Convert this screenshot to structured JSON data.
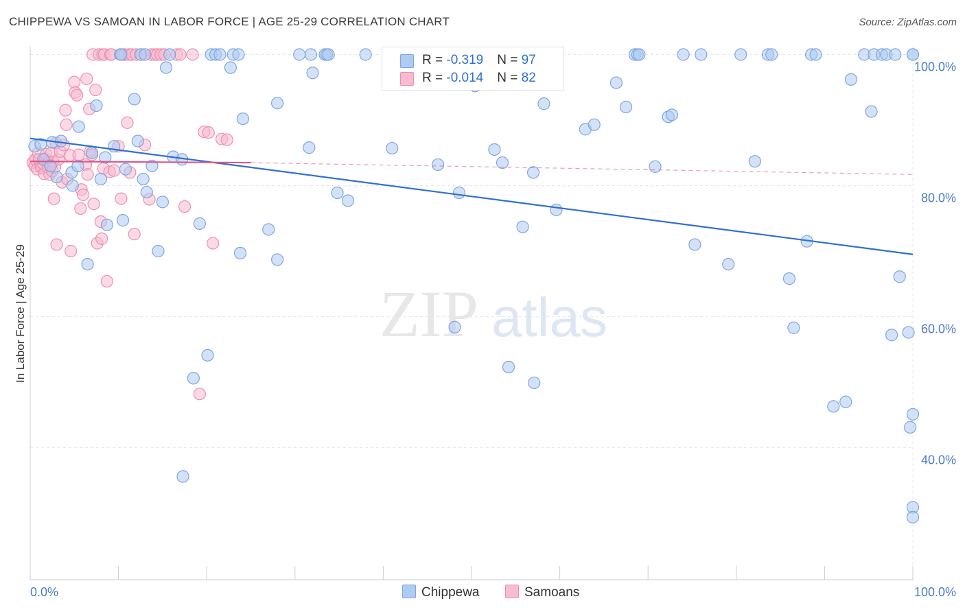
{
  "header": {
    "title": "CHIPPEWA VS SAMOAN IN LABOR FORCE | AGE 25-29 CORRELATION CHART",
    "source": "Source: ZipAtlas.com"
  },
  "watermark": {
    "zip": "ZIP",
    "atlas": "atlas"
  },
  "legend": {
    "rows": [
      {
        "r_label": "R = ",
        "r_value": "-0.319",
        "n_label": "N = ",
        "n_value": "97",
        "color": "#aecbf2",
        "border": "#7da6e0"
      },
      {
        "r_label": "R = ",
        "r_value": "-0.014",
        "n_label": "N = ",
        "n_value": "82",
        "color": "#f7bcd0",
        "border": "#ee8fb0"
      }
    ]
  },
  "chart_data": {
    "type": "scatter",
    "ylabel": "In Labor Force | Age 25-29",
    "xlim": [
      0,
      100
    ],
    "ylim": [
      22,
      102
    ],
    "x_tick_labels": [
      "0.0%",
      "100.0%"
    ],
    "y_ticks": [
      100,
      80,
      60,
      40
    ],
    "y_tick_labels": [
      "100.0%",
      "80.0%",
      "60.0%",
      "40.0%"
    ],
    "grid": true,
    "legend_position": "top-center",
    "series": [
      {
        "name": "Chippewa",
        "color": "#aecbf2",
        "stroke": "#7da6e0",
        "trend": {
          "x": [
            0,
            100
          ],
          "y": [
            87.2,
            69.5
          ],
          "color": "#2f6fd1",
          "style": "solid"
        },
        "points": [
          [
            0.5,
            86
          ],
          [
            1.2,
            86.3
          ],
          [
            2.5,
            86.6
          ],
          [
            3.5,
            86.8
          ],
          [
            1.5,
            84
          ],
          [
            2.3,
            83
          ],
          [
            3,
            81.3
          ],
          [
            4.7,
            82
          ],
          [
            4.8,
            80
          ],
          [
            5.4,
            83
          ],
          [
            5.5,
            89
          ],
          [
            6.5,
            68
          ],
          [
            7,
            85
          ],
          [
            7.5,
            92.2
          ],
          [
            8,
            81
          ],
          [
            8.5,
            84.3
          ],
          [
            8.7,
            74
          ],
          [
            9.5,
            86
          ],
          [
            10.2,
            100
          ],
          [
            10.3,
            100
          ],
          [
            10.5,
            74.7
          ],
          [
            10.8,
            82.5
          ],
          [
            11.8,
            93.2
          ],
          [
            12.2,
            86.8
          ],
          [
            12.5,
            100
          ],
          [
            12.8,
            81
          ],
          [
            13,
            100
          ],
          [
            13.2,
            79
          ],
          [
            13.8,
            83
          ],
          [
            14.5,
            70
          ],
          [
            15,
            77.5
          ],
          [
            15.4,
            98
          ],
          [
            15.8,
            100
          ],
          [
            16.2,
            84.4
          ],
          [
            17.2,
            84
          ],
          [
            17.3,
            35.6
          ],
          [
            18.5,
            50.6
          ],
          [
            19.2,
            74.2
          ],
          [
            20.1,
            54.1
          ],
          [
            20.5,
            100
          ],
          [
            21,
            100
          ],
          [
            21.5,
            100
          ],
          [
            22.7,
            98
          ],
          [
            23,
            100
          ],
          [
            23.6,
            100
          ],
          [
            23.8,
            69.7
          ],
          [
            24.1,
            90.2
          ],
          [
            27,
            73.3
          ],
          [
            28,
            68.7
          ],
          [
            28,
            92.6
          ],
          [
            30.5,
            100
          ],
          [
            31.6,
            85.8
          ],
          [
            31.8,
            100
          ],
          [
            32,
            97.2
          ],
          [
            33.4,
            100
          ],
          [
            33.6,
            100
          ],
          [
            33.8,
            100
          ],
          [
            34.8,
            78.9
          ],
          [
            36,
            77.7
          ],
          [
            38,
            100
          ],
          [
            41,
            85.7
          ],
          [
            43.4,
            100
          ],
          [
            44,
            100
          ],
          [
            46.2,
            83.2
          ],
          [
            48.1,
            58.4
          ],
          [
            48.6,
            78.9
          ],
          [
            50.4,
            95.2
          ],
          [
            51.3,
            100
          ],
          [
            51.4,
            100
          ],
          [
            52.6,
            85.5
          ],
          [
            53.5,
            83.5
          ],
          [
            53.6,
            100
          ],
          [
            54.2,
            52.3
          ],
          [
            55.8,
            73.7
          ],
          [
            57,
            82
          ],
          [
            57.1,
            49.9
          ],
          [
            58.2,
            92.5
          ],
          [
            59.6,
            76.3
          ],
          [
            62.9,
            88.6
          ],
          [
            63.9,
            89.3
          ],
          [
            66.4,
            95.7
          ],
          [
            67.5,
            92
          ],
          [
            68.5,
            100
          ],
          [
            68.8,
            100
          ],
          [
            69,
            100
          ],
          [
            70.8,
            82.9
          ],
          [
            72.3,
            90.5
          ],
          [
            72.7,
            90.8
          ],
          [
            74,
            100
          ],
          [
            75.3,
            71
          ],
          [
            76,
            100
          ],
          [
            79.1,
            68
          ],
          [
            80.5,
            100
          ],
          [
            82.1,
            83.7
          ],
          [
            83.6,
            100
          ],
          [
            84,
            100
          ],
          [
            86,
            65.8
          ],
          [
            86.5,
            58.3
          ],
          [
            88,
            71.5
          ],
          [
            88.5,
            100
          ],
          [
            89,
            100
          ],
          [
            91,
            46.3
          ],
          [
            92.4,
            47
          ],
          [
            93,
            96.2
          ],
          [
            94.5,
            100
          ],
          [
            95.3,
            91.3
          ],
          [
            95.6,
            100
          ],
          [
            96.5,
            100
          ],
          [
            97,
            100
          ],
          [
            97.6,
            57.2
          ],
          [
            98,
            100
          ],
          [
            98.5,
            66.1
          ],
          [
            99.5,
            57.6
          ],
          [
            99.7,
            43.1
          ],
          [
            100,
            100
          ],
          [
            100.5,
            100
          ],
          [
            100.6,
            45.1
          ],
          [
            100.8,
            30.9
          ],
          [
            101.2,
            29.4
          ]
        ]
      },
      {
        "name": "Samoans",
        "color": "#f7bcd0",
        "stroke": "#ee8fb0",
        "trend": {
          "x": [
            0,
            25,
            100
          ],
          "y": [
            83.7,
            83.5,
            81.7
          ],
          "color": "#e0558a",
          "style": "solid-then-dashed"
        },
        "points": [
          [
            0.3,
            83.5
          ],
          [
            0.5,
            83
          ],
          [
            0.6,
            84
          ],
          [
            0.8,
            82.5
          ],
          [
            0.9,
            85
          ],
          [
            1,
            84
          ],
          [
            1.2,
            83
          ],
          [
            1.3,
            82.7
          ],
          [
            1.5,
            83.3
          ],
          [
            1.6,
            81.8
          ],
          [
            1.7,
            84.1
          ],
          [
            1.8,
            84.8
          ],
          [
            2,
            82.8
          ],
          [
            2.1,
            83.5
          ],
          [
            2.2,
            81.7
          ],
          [
            2.3,
            83.1
          ],
          [
            2.4,
            85
          ],
          [
            2.5,
            82.2
          ],
          [
            2.6,
            83.6
          ],
          [
            2.7,
            78
          ],
          [
            2.8,
            82.8
          ],
          [
            2.9,
            86.5
          ],
          [
            3,
            71
          ],
          [
            3.2,
            84
          ],
          [
            3.4,
            85.2
          ],
          [
            3.6,
            80.5
          ],
          [
            3.8,
            86.2
          ],
          [
            4,
            91.5
          ],
          [
            4.1,
            89.3
          ],
          [
            4.2,
            81
          ],
          [
            4.5,
            84.6
          ],
          [
            4.6,
            70
          ],
          [
            5,
            95.8
          ],
          [
            5.1,
            94.2
          ],
          [
            5.3,
            93.8
          ],
          [
            5.5,
            84.7
          ],
          [
            5.7,
            76.5
          ],
          [
            5.8,
            79.4
          ],
          [
            6,
            78.6
          ],
          [
            6.3,
            83.2
          ],
          [
            6.4,
            96.3
          ],
          [
            6.5,
            81.7
          ],
          [
            6.7,
            91.7
          ],
          [
            6.8,
            85.2
          ],
          [
            7,
            84.7
          ],
          [
            7.1,
            100
          ],
          [
            7.2,
            77.2
          ],
          [
            7.4,
            94.6
          ],
          [
            7.6,
            71.2
          ],
          [
            7.8,
            100
          ],
          [
            8,
            74.5
          ],
          [
            8.1,
            71.9
          ],
          [
            8.2,
            100
          ],
          [
            8.3,
            82.6
          ],
          [
            8.4,
            100
          ],
          [
            8.7,
            65.4
          ],
          [
            9,
            82.1
          ],
          [
            9.1,
            100
          ],
          [
            9.2,
            100
          ],
          [
            9.5,
            82.3
          ],
          [
            10,
            86
          ],
          [
            10.3,
            78
          ],
          [
            10.5,
            100
          ],
          [
            10.7,
            100
          ],
          [
            11,
            89.6
          ],
          [
            11.2,
            100
          ],
          [
            11.3,
            82
          ],
          [
            11.5,
            100
          ],
          [
            11.8,
            72.6
          ],
          [
            12,
            100
          ],
          [
            12.6,
            100
          ],
          [
            13,
            86.2
          ],
          [
            13.5,
            77.9
          ],
          [
            13.7,
            100
          ],
          [
            14.1,
            100
          ],
          [
            14.4,
            100
          ],
          [
            14.8,
            100
          ],
          [
            15.2,
            100
          ],
          [
            16.6,
            100
          ],
          [
            17,
            100
          ],
          [
            17.5,
            76.8
          ],
          [
            18.4,
            100
          ],
          [
            19.2,
            48.2
          ],
          [
            19.7,
            88.2
          ],
          [
            20.2,
            88.1
          ],
          [
            20.7,
            71.2
          ],
          [
            21.7,
            87.1
          ],
          [
            22.3,
            87
          ]
        ]
      }
    ]
  },
  "bottom_legend": {
    "items": [
      "Chippewa",
      "Samoans"
    ]
  }
}
